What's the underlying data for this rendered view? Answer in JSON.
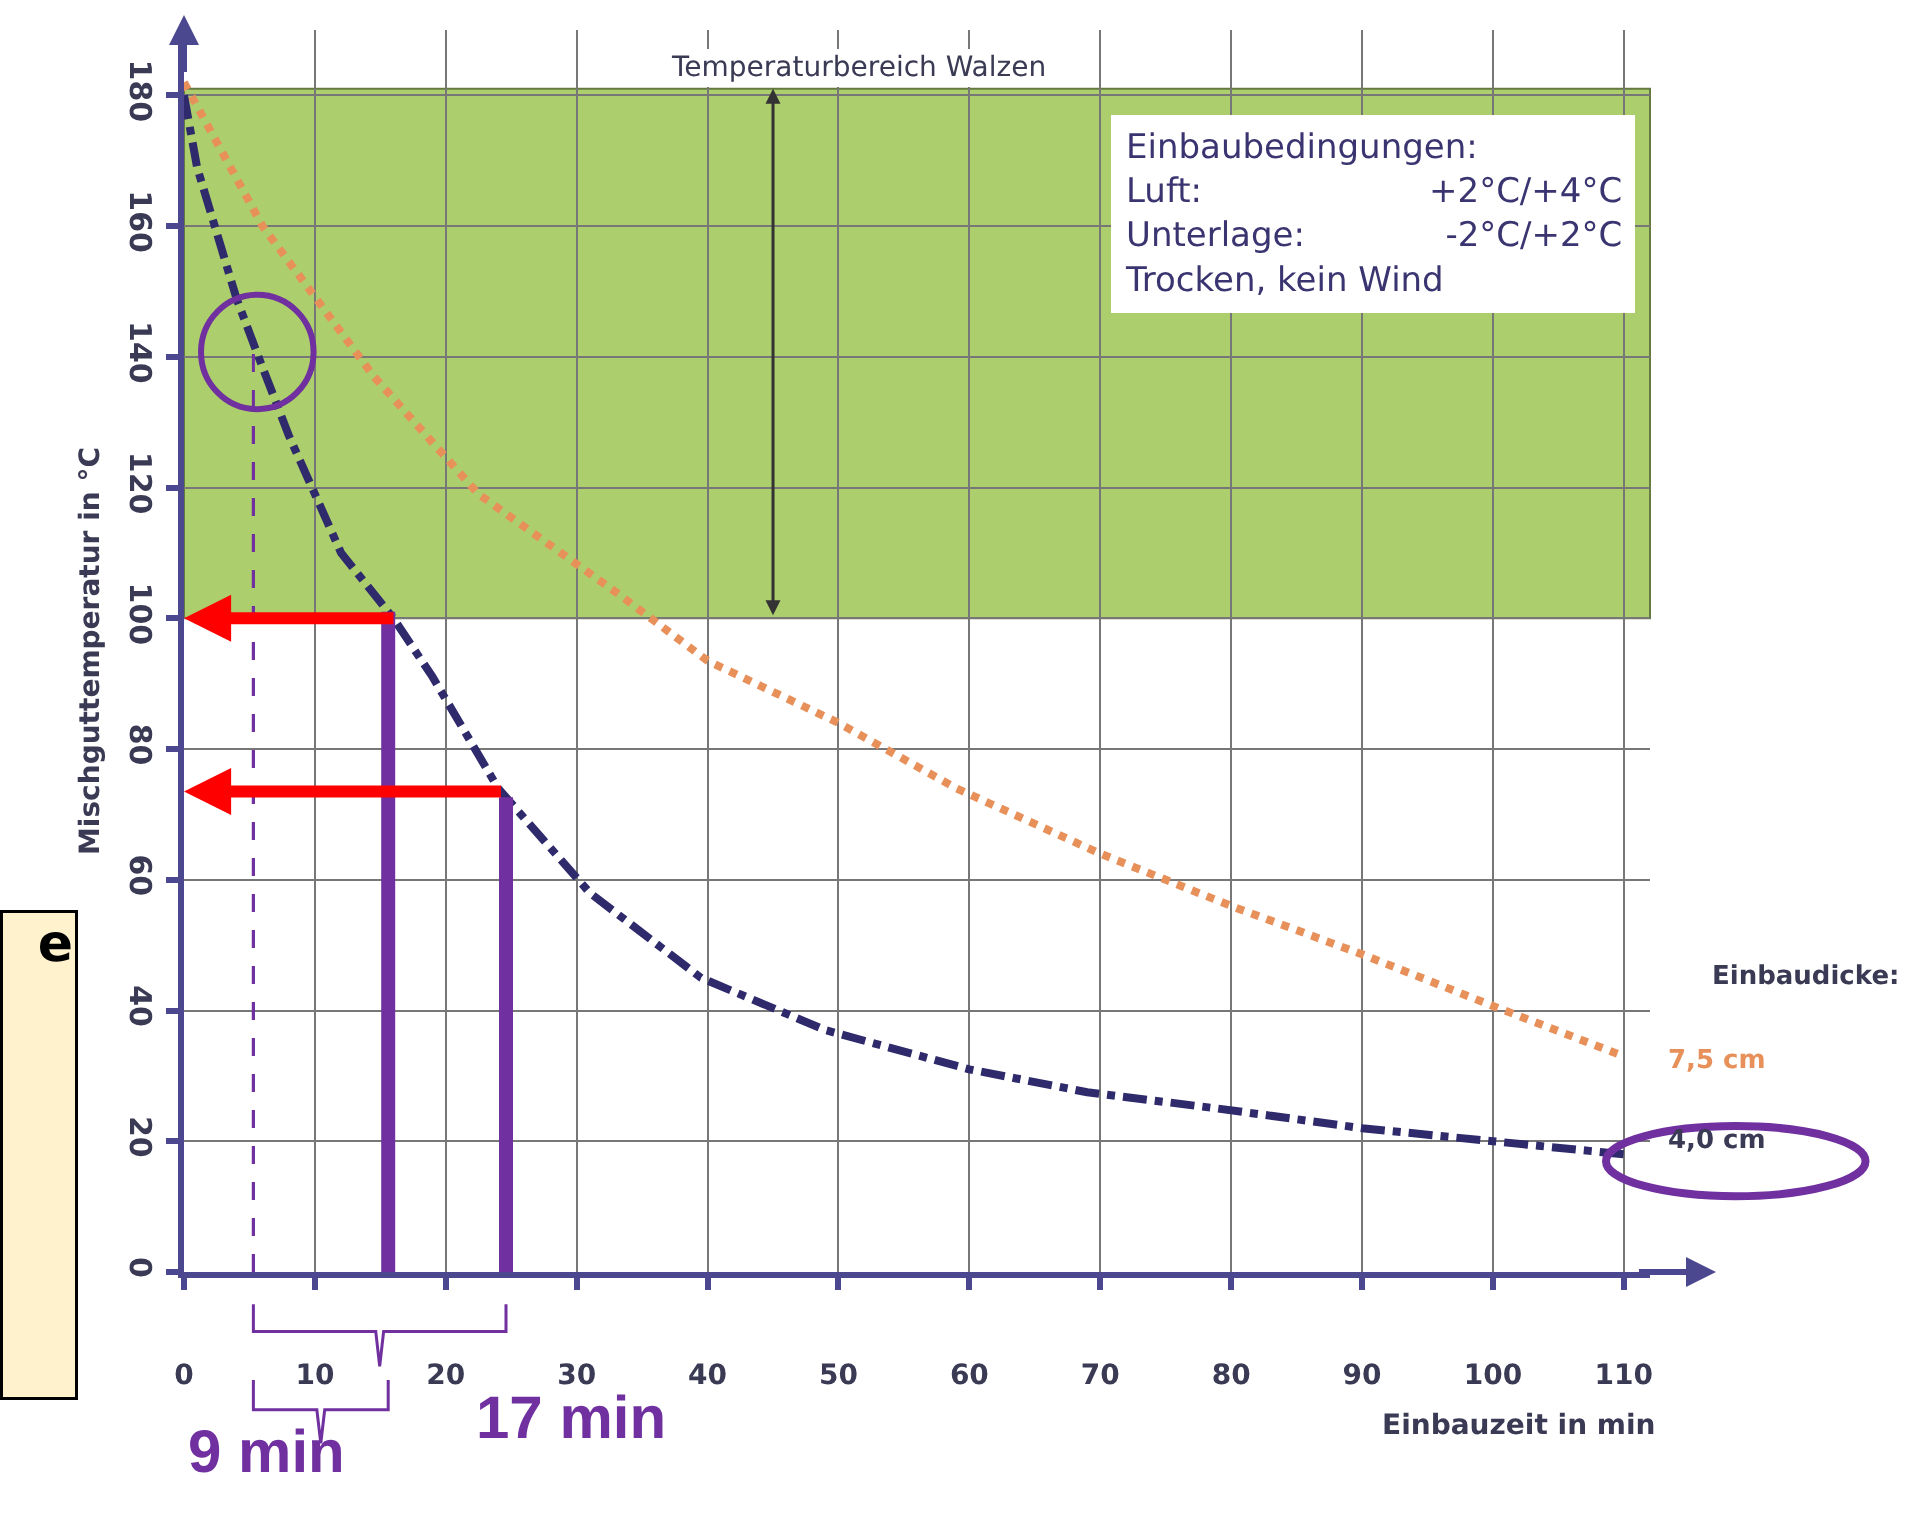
{
  "chart_data": {
    "type": "line",
    "xlabel": "Einbauzeit in min",
    "ylabel": "Mischguttemperatur in °C",
    "legend_title": "Einbaudicke:",
    "xlim": [
      0,
      112
    ],
    "xticks": [
      0,
      10,
      20,
      30,
      40,
      50,
      60,
      70,
      80,
      90,
      100,
      110
    ],
    "ylim": [
      0,
      190
    ],
    "yticks": [
      0,
      20,
      40,
      60,
      80,
      100,
      120,
      140,
      160,
      180
    ],
    "grid": true,
    "series": [
      {
        "name": "7,5 cm",
        "color": "#e8905a",
        "line_style": "dotted",
        "x": [
          0,
          6,
          14.5,
          22.5,
          33,
          40,
          50,
          59,
          70,
          80,
          90,
          100,
          110
        ],
        "values": [
          182,
          160,
          137,
          119,
          104,
          93.5,
          84,
          74,
          64,
          56,
          48.6,
          40.7,
          33
        ]
      },
      {
        "name": "4,0 cm",
        "color": "#2e2a6b",
        "line_style": "dashed",
        "x": [
          0,
          1,
          4,
          5.5,
          8,
          12,
          16,
          19,
          24,
          31,
          39.5,
          49,
          60,
          69,
          79,
          90,
          100,
          110
        ],
        "values": [
          180,
          169,
          149,
          141,
          128,
          110,
          100,
          91,
          74,
          58,
          45,
          37,
          31,
          27.5,
          25,
          22,
          20,
          18
        ]
      }
    ],
    "ref_lines": [
      {
        "axis": "x",
        "value": 5.3,
        "color": "#7030a0",
        "line_style": "dashed"
      },
      {
        "axis": "x",
        "value": 15.6,
        "color": "#7030a0",
        "line_style": "solid"
      },
      {
        "axis": "x",
        "value": 24.6,
        "color": "#7030a0",
        "line_style": "solid"
      },
      {
        "axis": "y",
        "value": 100,
        "color": "#ff0000",
        "line_style": "solid"
      },
      {
        "axis": "y",
        "value": 73.5,
        "color": "#ff0000",
        "line_style": "solid"
      }
    ],
    "bands": [
      {
        "axis": "y",
        "from": 100,
        "to": 181,
        "label": "Temperaturbereich Walzen",
        "color": "#a4c95d"
      }
    ],
    "annotations": [
      "Einbaubedingungen:\nLuft:                     +2°C/+4°C\nUnterlage:             -2°C/+2°C\nTrocken, kein Wind",
      "e",
      "9 min",
      "17 min"
    ]
  }
}
